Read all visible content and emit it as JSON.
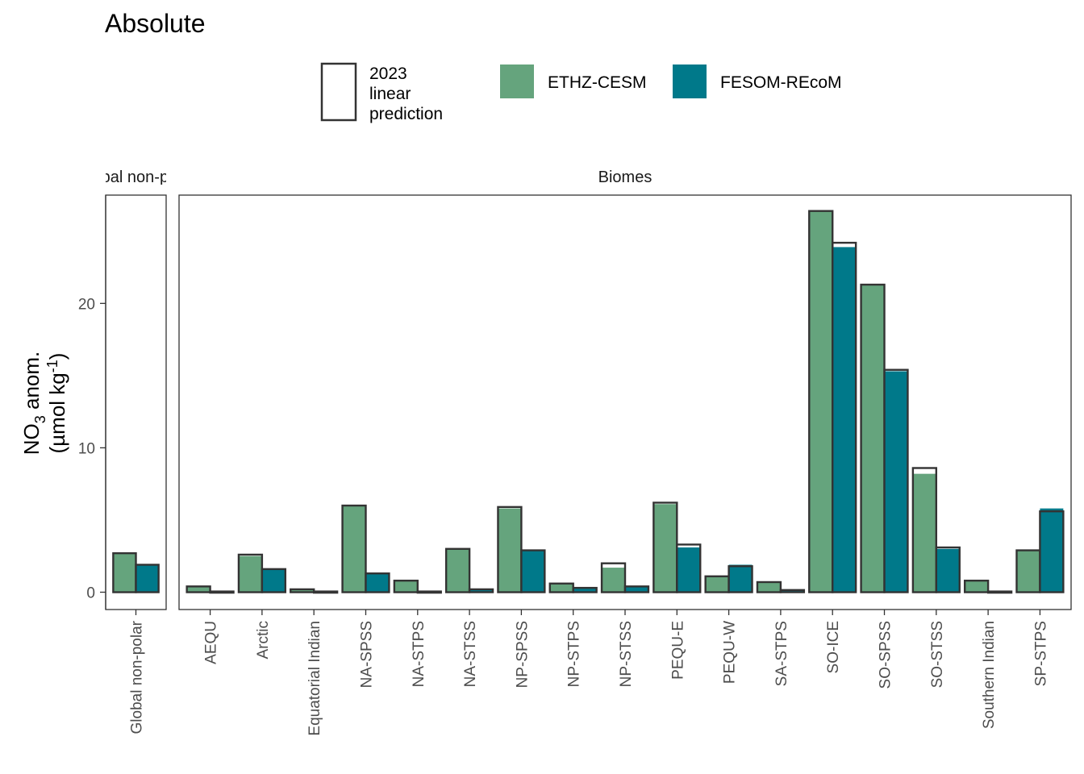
{
  "chart_data": {
    "type": "bar",
    "title": "Absolute",
    "ylabel": {
      "line1_main": "NO",
      "line1_sub": "3",
      "line1_rest": " anom.",
      "line2_pre": "(µmol kg",
      "line2_sup": "-1",
      "line2_post": ")"
    },
    "ylim": [
      -1.2,
      27.5
    ],
    "yticks": [
      0,
      10,
      20
    ],
    "colors": {
      "ETHZ-CESM": "#65a47d",
      "FESOM-REcoM": "#00798a",
      "outline": "#333333"
    },
    "legend": {
      "position": "top",
      "outline_label": [
        "2023",
        "linear",
        "prediction"
      ],
      "series_labels": [
        "ETHZ-CESM",
        "FESOM-REcoM"
      ]
    },
    "panels": [
      {
        "strip": "Global non-polar",
        "categories": [
          "Global non-polar"
        ],
        "series": [
          {
            "name": "ETHZ-CESM",
            "values": [
              2.7
            ]
          },
          {
            "name": "FESOM-REcoM",
            "values": [
              1.9
            ]
          }
        ],
        "prediction": [
          {
            "name": "ETHZ-CESM",
            "values": [
              2.7
            ]
          },
          {
            "name": "FESOM-REcoM",
            "values": [
              1.9
            ]
          }
        ]
      },
      {
        "strip": "Biomes",
        "categories": [
          "AEQU",
          "Arctic",
          "Equatorial Indian",
          "NA-SPSS",
          "NA-STPS",
          "NA-STSS",
          "NP-SPSS",
          "NP-STPS",
          "NP-STSS",
          "PEQU-E",
          "PEQU-W",
          "SA-STPS",
          "SO-ICE",
          "SO-SPSS",
          "SO-STSS",
          "Southern Indian",
          "SP-STPS"
        ],
        "series": [
          {
            "name": "ETHZ-CESM",
            "values": [
              0.4,
              2.5,
              0.2,
              6.0,
              0.8,
              3.0,
              5.8,
              0.6,
              1.7,
              6.1,
              1.1,
              0.7,
              26.4,
              21.3,
              8.2,
              0.8,
              2.9
            ]
          },
          {
            "name": "FESOM-REcoM",
            "values": [
              0.05,
              1.6,
              0.05,
              1.3,
              0.05,
              0.2,
              2.9,
              0.3,
              0.4,
              3.1,
              1.9,
              0.15,
              23.9,
              15.3,
              3.0,
              0.05,
              5.8
            ]
          }
        ],
        "prediction": [
          {
            "name": "ETHZ-CESM",
            "values": [
              0.4,
              2.6,
              0.2,
              6.0,
              0.8,
              3.0,
              5.9,
              0.6,
              2.0,
              6.2,
              1.1,
              0.7,
              26.4,
              21.3,
              8.6,
              0.8,
              2.9
            ]
          },
          {
            "name": "FESOM-REcoM",
            "values": [
              0.05,
              1.6,
              0.05,
              1.3,
              0.05,
              0.2,
              2.9,
              0.3,
              0.4,
              3.3,
              1.8,
              0.15,
              24.2,
              15.4,
              3.1,
              0.05,
              5.6
            ]
          }
        ]
      }
    ]
  }
}
